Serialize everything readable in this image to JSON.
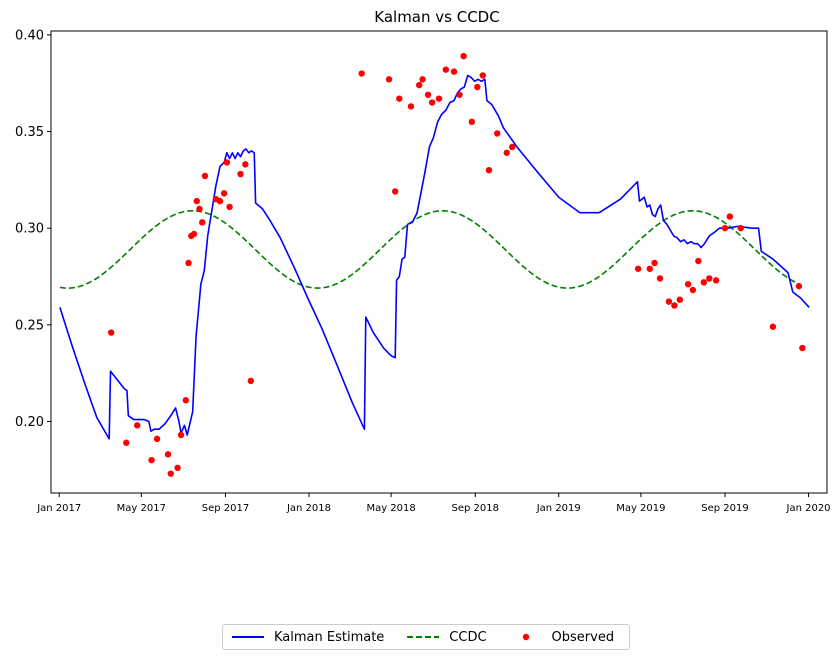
{
  "chart_data": {
    "type": "line",
    "title": "Kalman vs CCDC",
    "xlabel": "",
    "ylabel": "",
    "x_range": [
      "2016-12-20",
      "2020-01-28"
    ],
    "ylim": [
      0.163,
      0.402
    ],
    "y_ticks": [
      0.2,
      0.25,
      0.3,
      0.35,
      0.4
    ],
    "y_tick_labels": [
      "0.20",
      "0.25",
      "0.30",
      "0.35",
      "0.40"
    ],
    "x_ticks": [
      "2017-01-01",
      "2017-05-01",
      "2017-09-01",
      "2018-01-01",
      "2018-05-01",
      "2018-09-01",
      "2019-01-01",
      "2019-05-01",
      "2019-09-01",
      "2020-01-01"
    ],
    "x_tick_labels": [
      "Jan 2017",
      "May 2017",
      "Sep 2017",
      "Jan 2018",
      "May 2018",
      "Sep 2018",
      "Jan 2019",
      "May 2019",
      "Sep 2019",
      "Jan 2020"
    ],
    "grid": false,
    "legend_position": "bottom-center",
    "series": [
      {
        "name": "Kalman Estimate",
        "style": "solid",
        "color": "#0000ff",
        "points": [
          [
            "2017-01-02",
            0.259
          ],
          [
            "2017-01-20",
            0.239
          ],
          [
            "2017-02-08",
            0.219
          ],
          [
            "2017-02-25",
            0.202
          ],
          [
            "2017-03-15",
            0.191
          ],
          [
            "2017-03-17",
            0.226
          ],
          [
            "2017-04-06",
            0.217
          ],
          [
            "2017-04-10",
            0.216
          ],
          [
            "2017-04-12",
            0.203
          ],
          [
            "2017-04-20",
            0.201
          ],
          [
            "2017-05-05",
            0.201
          ],
          [
            "2017-05-12",
            0.2
          ],
          [
            "2017-05-15",
            0.195
          ],
          [
            "2017-05-20",
            0.196
          ],
          [
            "2017-05-27",
            0.196
          ],
          [
            "2017-06-05",
            0.199
          ],
          [
            "2017-06-13",
            0.203
          ],
          [
            "2017-06-20",
            0.207
          ],
          [
            "2017-06-25",
            0.2
          ],
          [
            "2017-06-28",
            0.194
          ],
          [
            "2017-07-03",
            0.198
          ],
          [
            "2017-07-07",
            0.193
          ],
          [
            "2017-07-11",
            0.199
          ],
          [
            "2017-07-15",
            0.205
          ],
          [
            "2017-07-20",
            0.244
          ],
          [
            "2017-07-27",
            0.271
          ],
          [
            "2017-08-01",
            0.278
          ],
          [
            "2017-08-06",
            0.296
          ],
          [
            "2017-08-12",
            0.309
          ],
          [
            "2017-08-18",
            0.322
          ],
          [
            "2017-08-24",
            0.332
          ],
          [
            "2017-08-30",
            0.334
          ],
          [
            "2017-09-03",
            0.339
          ],
          [
            "2017-09-07",
            0.336
          ],
          [
            "2017-09-11",
            0.339
          ],
          [
            "2017-09-15",
            0.336
          ],
          [
            "2017-09-19",
            0.339
          ],
          [
            "2017-09-23",
            0.337
          ],
          [
            "2017-09-27",
            0.34
          ],
          [
            "2017-10-01",
            0.341
          ],
          [
            "2017-10-05",
            0.339
          ],
          [
            "2017-10-09",
            0.34
          ],
          [
            "2017-10-13",
            0.339
          ],
          [
            "2017-10-15",
            0.313
          ],
          [
            "2017-10-25",
            0.31
          ],
          [
            "2017-11-05",
            0.304
          ],
          [
            "2017-11-20",
            0.295
          ],
          [
            "2017-12-10",
            0.28
          ],
          [
            "2017-12-30",
            0.264
          ],
          [
            "2018-01-20",
            0.248
          ],
          [
            "2018-02-10",
            0.23
          ],
          [
            "2018-03-05",
            0.21
          ],
          [
            "2018-03-23",
            0.196
          ],
          [
            "2018-03-25",
            0.254
          ],
          [
            "2018-04-05",
            0.246
          ],
          [
            "2018-04-20",
            0.238
          ],
          [
            "2018-05-01",
            0.234
          ],
          [
            "2018-05-07",
            0.233
          ],
          [
            "2018-05-09",
            0.273
          ],
          [
            "2018-05-13",
            0.275
          ],
          [
            "2018-05-17",
            0.284
          ],
          [
            "2018-05-21",
            0.285
          ],
          [
            "2018-05-25",
            0.302
          ],
          [
            "2018-06-01",
            0.303
          ],
          [
            "2018-06-08",
            0.308
          ],
          [
            "2018-06-14",
            0.319
          ],
          [
            "2018-06-20",
            0.33
          ],
          [
            "2018-06-26",
            0.342
          ],
          [
            "2018-07-02",
            0.347
          ],
          [
            "2018-07-08",
            0.355
          ],
          [
            "2018-07-14",
            0.359
          ],
          [
            "2018-07-20",
            0.361
          ],
          [
            "2018-07-26",
            0.365
          ],
          [
            "2018-08-01",
            0.366
          ],
          [
            "2018-08-06",
            0.37
          ],
          [
            "2018-08-11",
            0.372
          ],
          [
            "2018-08-16",
            0.373
          ],
          [
            "2018-08-21",
            0.379
          ],
          [
            "2018-08-26",
            0.378
          ],
          [
            "2018-08-31",
            0.376
          ],
          [
            "2018-09-05",
            0.377
          ],
          [
            "2018-09-10",
            0.376
          ],
          [
            "2018-09-15",
            0.377
          ],
          [
            "2018-09-18",
            0.366
          ],
          [
            "2018-09-25",
            0.364
          ],
          [
            "2018-10-05",
            0.358
          ],
          [
            "2018-10-12",
            0.352
          ],
          [
            "2018-11-01",
            0.342
          ],
          [
            "2018-12-01",
            0.329
          ],
          [
            "2019-01-01",
            0.316
          ],
          [
            "2019-02-01",
            0.308
          ],
          [
            "2019-03-01",
            0.308
          ],
          [
            "2019-04-01",
            0.315
          ],
          [
            "2019-04-26",
            0.324
          ],
          [
            "2019-04-29",
            0.314
          ],
          [
            "2019-05-06",
            0.316
          ],
          [
            "2019-05-10",
            0.311
          ],
          [
            "2019-05-14",
            0.312
          ],
          [
            "2019-05-18",
            0.307
          ],
          [
            "2019-05-22",
            0.306
          ],
          [
            "2019-05-26",
            0.31
          ],
          [
            "2019-05-30",
            0.312
          ],
          [
            "2019-06-03",
            0.304
          ],
          [
            "2019-06-08",
            0.302
          ],
          [
            "2019-06-13",
            0.299
          ],
          [
            "2019-06-18",
            0.296
          ],
          [
            "2019-06-23",
            0.295
          ],
          [
            "2019-06-28",
            0.293
          ],
          [
            "2019-07-03",
            0.294
          ],
          [
            "2019-07-08",
            0.292
          ],
          [
            "2019-07-13",
            0.293
          ],
          [
            "2019-07-18",
            0.292
          ],
          [
            "2019-07-23",
            0.292
          ],
          [
            "2019-07-28",
            0.29
          ],
          [
            "2019-08-02",
            0.292
          ],
          [
            "2019-08-09",
            0.296
          ],
          [
            "2019-08-17",
            0.298
          ],
          [
            "2019-08-24",
            0.3
          ],
          [
            "2019-09-05",
            0.3
          ],
          [
            "2019-09-20",
            0.301
          ],
          [
            "2019-10-10",
            0.3
          ],
          [
            "2019-10-20",
            0.3
          ],
          [
            "2019-10-24",
            0.288
          ],
          [
            "2019-11-10",
            0.284
          ],
          [
            "2019-12-02",
            0.277
          ],
          [
            "2019-12-09",
            0.267
          ],
          [
            "2019-12-20",
            0.264
          ],
          [
            "2020-01-02",
            0.259
          ]
        ]
      },
      {
        "name": "CCDC",
        "style": "dashed",
        "color": "#008000",
        "model": "harmonic",
        "start": "2017-01-02",
        "end": "2019-12-22",
        "mean": 0.289,
        "amplitude": 0.02,
        "period_days": 365.25,
        "peak_date": "2017-07-15"
      },
      {
        "name": "Observed",
        "style": "scatter",
        "color": "#ff0000",
        "points": [
          [
            "2017-03-18",
            0.246
          ],
          [
            "2017-04-09",
            0.189
          ],
          [
            "2017-04-25",
            0.198
          ],
          [
            "2017-05-16",
            0.18
          ],
          [
            "2017-05-24",
            0.191
          ],
          [
            "2017-06-09",
            0.183
          ],
          [
            "2017-06-13",
            0.173
          ],
          [
            "2017-06-23",
            0.176
          ],
          [
            "2017-06-28",
            0.193
          ],
          [
            "2017-07-05",
            0.211
          ],
          [
            "2017-07-09",
            0.282
          ],
          [
            "2017-07-13",
            0.296
          ],
          [
            "2017-07-17",
            0.297
          ],
          [
            "2017-07-21",
            0.314
          ],
          [
            "2017-07-25",
            0.31
          ],
          [
            "2017-07-29",
            0.303
          ],
          [
            "2017-08-02",
            0.327
          ],
          [
            "2017-08-18",
            0.315
          ],
          [
            "2017-08-24",
            0.314
          ],
          [
            "2017-08-30",
            0.318
          ],
          [
            "2017-09-03",
            0.334
          ],
          [
            "2017-09-07",
            0.311
          ],
          [
            "2017-09-23",
            0.328
          ],
          [
            "2017-09-30",
            0.333
          ],
          [
            "2017-10-08",
            0.221
          ],
          [
            "2018-03-19",
            0.38
          ],
          [
            "2018-04-28",
            0.377
          ],
          [
            "2018-05-07",
            0.319
          ],
          [
            "2018-05-13",
            0.367
          ],
          [
            "2018-05-30",
            0.363
          ],
          [
            "2018-06-11",
            0.374
          ],
          [
            "2018-06-16",
            0.377
          ],
          [
            "2018-06-24",
            0.369
          ],
          [
            "2018-06-30",
            0.365
          ],
          [
            "2018-07-10",
            0.367
          ],
          [
            "2018-07-20",
            0.382
          ],
          [
            "2018-08-01",
            0.381
          ],
          [
            "2018-08-09",
            0.369
          ],
          [
            "2018-08-15",
            0.389
          ],
          [
            "2018-08-27",
            0.355
          ],
          [
            "2018-09-04",
            0.373
          ],
          [
            "2018-09-12",
            0.379
          ],
          [
            "2018-09-21",
            0.33
          ],
          [
            "2018-10-03",
            0.349
          ],
          [
            "2018-10-17",
            0.339
          ],
          [
            "2018-10-25",
            0.342
          ],
          [
            "2019-04-27",
            0.279
          ],
          [
            "2019-05-14",
            0.279
          ],
          [
            "2019-05-21",
            0.282
          ],
          [
            "2019-05-29",
            0.274
          ],
          [
            "2019-06-11",
            0.262
          ],
          [
            "2019-06-19",
            0.26
          ],
          [
            "2019-06-27",
            0.263
          ],
          [
            "2019-07-09",
            0.271
          ],
          [
            "2019-07-16",
            0.268
          ],
          [
            "2019-07-24",
            0.283
          ],
          [
            "2019-08-01",
            0.272
          ],
          [
            "2019-08-09",
            0.274
          ],
          [
            "2019-08-19",
            0.273
          ],
          [
            "2019-09-01",
            0.3
          ],
          [
            "2019-09-08",
            0.306
          ],
          [
            "2019-09-24",
            0.3
          ],
          [
            "2019-11-10",
            0.249
          ],
          [
            "2019-12-18",
            0.27
          ],
          [
            "2019-12-23",
            0.238
          ]
        ]
      }
    ]
  }
}
